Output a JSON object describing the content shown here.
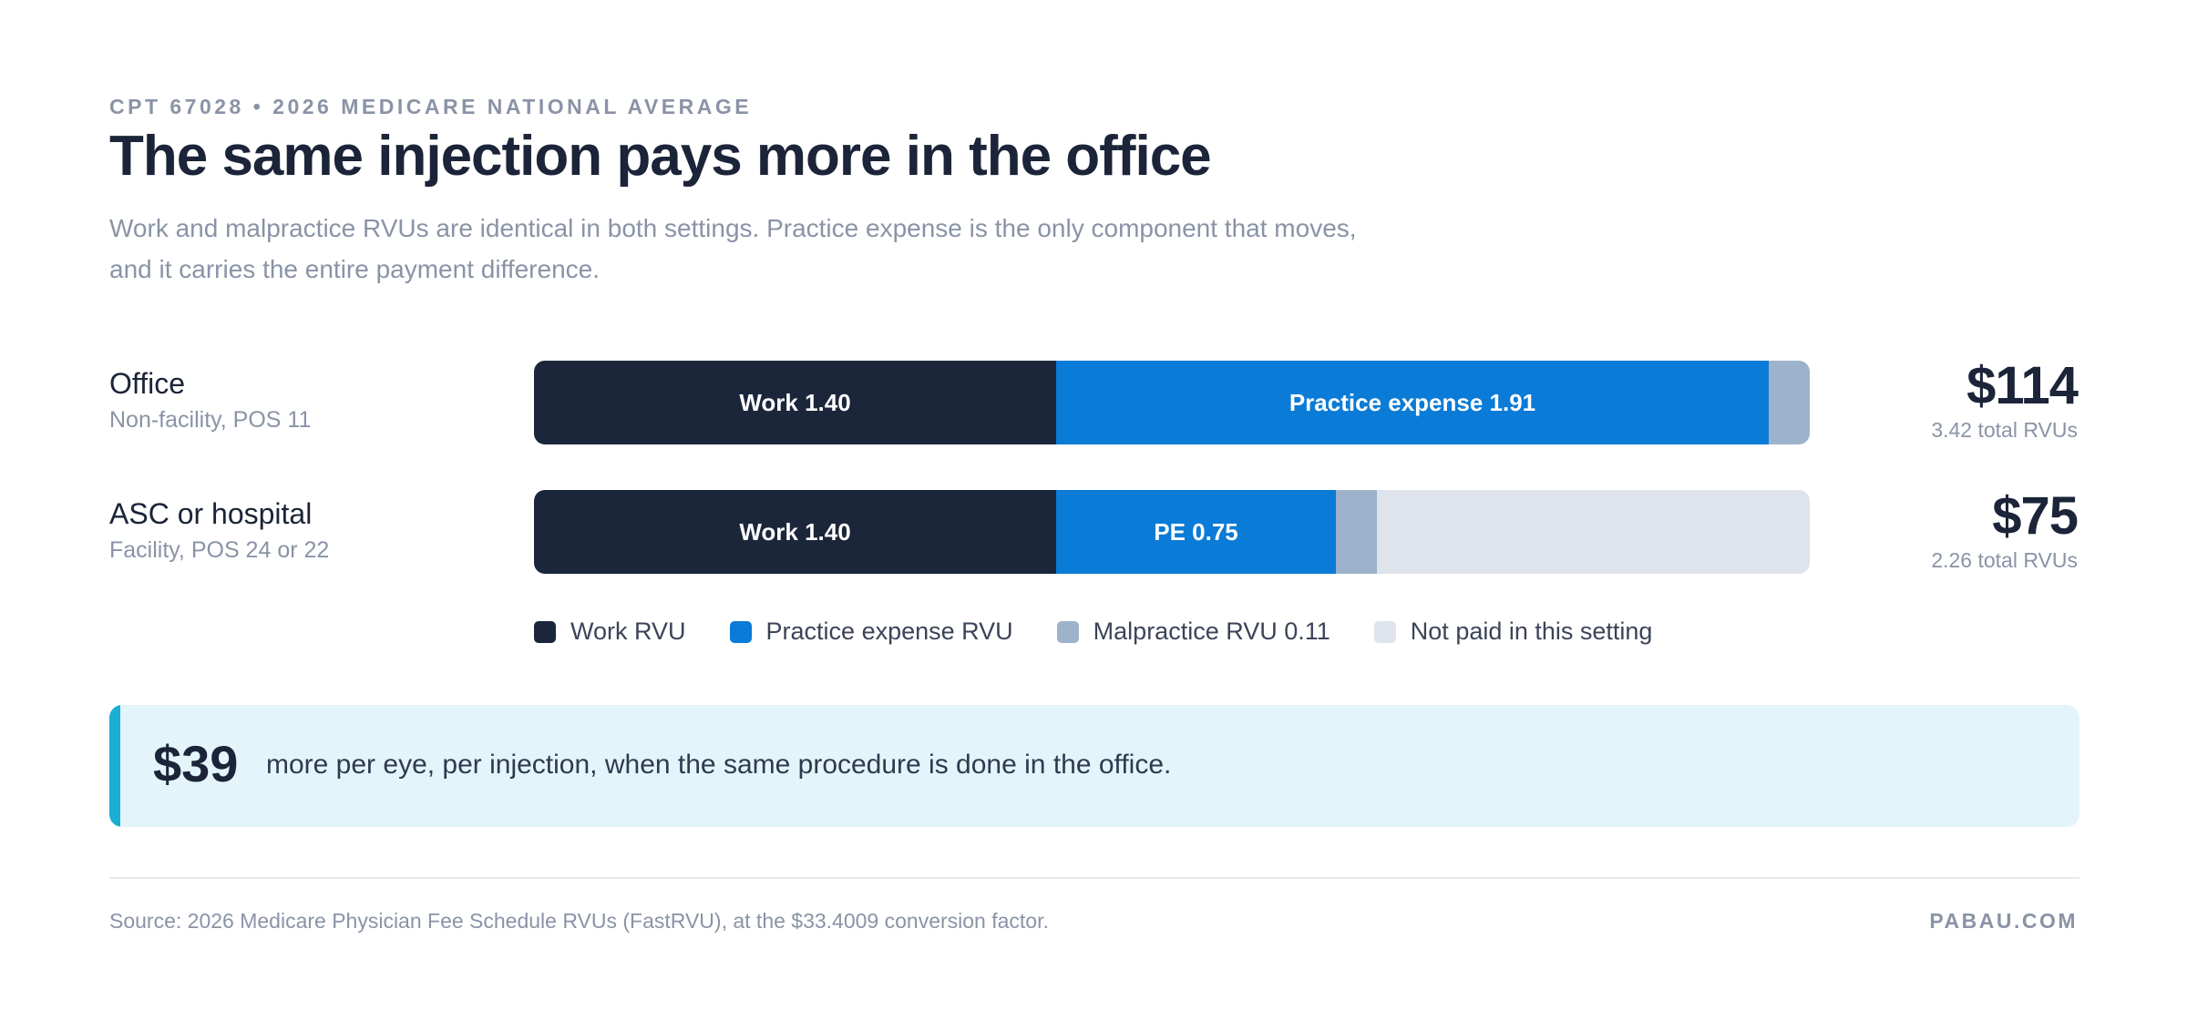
{
  "eyebrow": "CPT 67028 • 2026 MEDICARE NATIONAL AVERAGE",
  "title": "The same injection pays more in the office",
  "subtitle": "Work and malpractice RVUs are identical in both settings. Practice expense is the only component that moves, and it carries the entire payment difference.",
  "colors": {
    "work": "#1c263b",
    "practice_expense": "#0a7bd6",
    "malpractice": "#9db3cb",
    "not_paid": "#dfe3ec",
    "callout_bg": "#e3f5fa",
    "callout_accent": "#1aaed4"
  },
  "chart_data": {
    "type": "bar",
    "orientation": "horizontal",
    "stacked": true,
    "categories": [
      "Office",
      "ASC or hospital"
    ],
    "category_subtitles": [
      "Non-facility, POS 11",
      "Facility, POS 24 or 22"
    ],
    "xlim": [
      0,
      3.42
    ],
    "series": [
      {
        "name": "Work RVU",
        "values": [
          1.4,
          1.4
        ],
        "labels": [
          "Work 1.40",
          "Work 1.40"
        ]
      },
      {
        "name": "Practice expense RVU",
        "values": [
          1.91,
          0.75
        ],
        "labels": [
          "Practice expense 1.91",
          "PE 0.75"
        ]
      },
      {
        "name": "Malpractice RVU 0.11",
        "values": [
          0.11,
          0.11
        ],
        "labels": [
          "",
          ""
        ]
      },
      {
        "name": "Not paid in this setting",
        "values": [
          0,
          1.16
        ],
        "labels": [
          "",
          ""
        ]
      }
    ],
    "totals": [
      {
        "amount": "$114",
        "rvus": "3.42 total RVUs"
      },
      {
        "amount": "$75",
        "rvus": "2.26 total RVUs"
      }
    ],
    "legend": [
      "Work RVU",
      "Practice expense RVU",
      "Malpractice RVU 0.11",
      "Not paid in this setting"
    ],
    "legend_position": "bottom"
  },
  "callout": {
    "amount": "$39",
    "text": "more per eye, per injection, when the same procedure is done in the office."
  },
  "footer": {
    "source": "Source: 2026 Medicare Physician Fee Schedule RVUs (FastRVU), at the $33.4009 conversion factor.",
    "brand": "PABAU.COM"
  }
}
